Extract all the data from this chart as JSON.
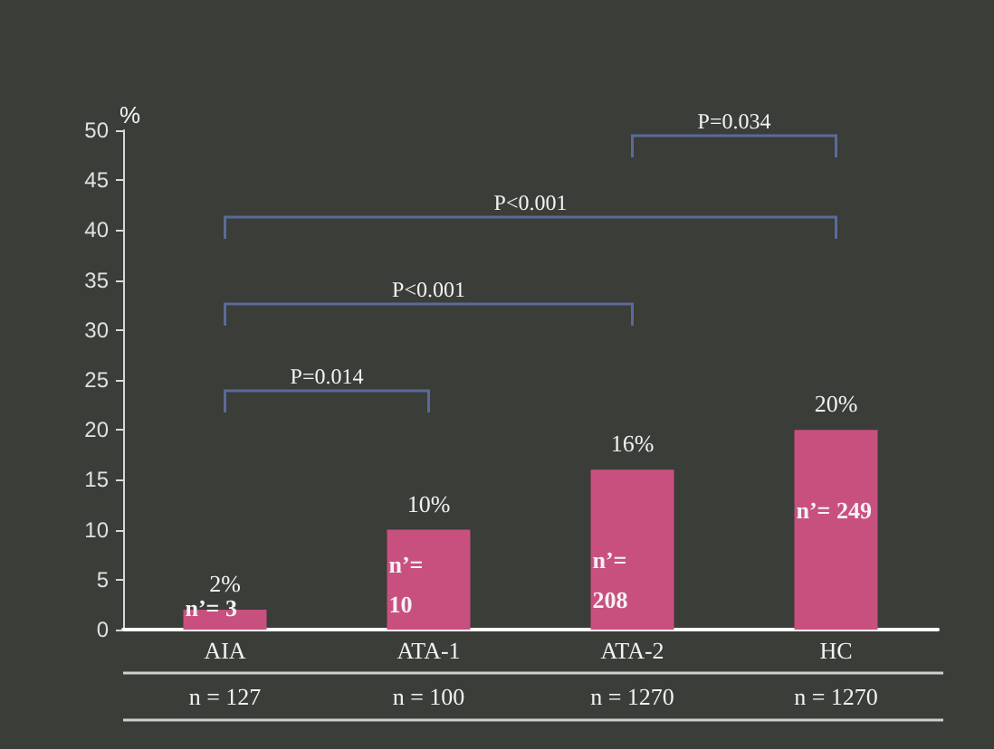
{
  "chart_data": {
    "type": "bar",
    "ylabel": "%",
    "categories": [
      "AIA",
      "ATA-1",
      "ATA-2",
      "HC"
    ],
    "values": [
      2,
      10,
      16,
      20
    ],
    "value_labels": [
      "2%",
      "10%",
      "16%",
      "20%"
    ],
    "color": "#c8507f",
    "ylim": [
      0,
      50
    ],
    "yticks": [
      0,
      5,
      10,
      15,
      20,
      25,
      30,
      35,
      40,
      45,
      50
    ],
    "grid": false,
    "annotations": [
      "P=0.034",
      "P<0.001",
      "P<0.001",
      "P=0.014",
      "n’= 3",
      "n’=\n10",
      "n’=\n208",
      "n’= 249",
      "n = 127",
      "n = 100",
      "n = 1270",
      "n = 1270"
    ]
  }
}
